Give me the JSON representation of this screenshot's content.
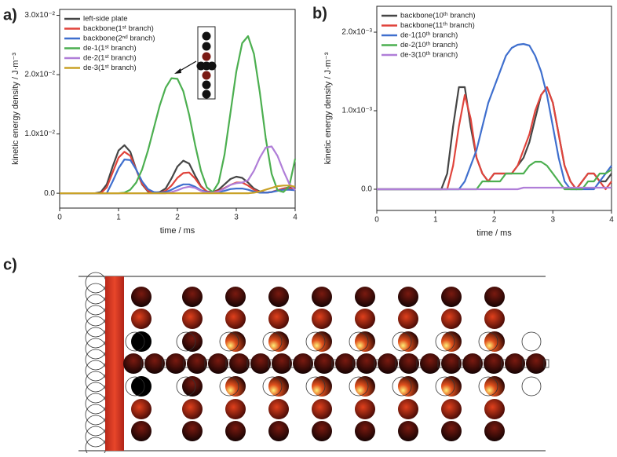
{
  "panel_labels": [
    "a)",
    "b)",
    "c)"
  ],
  "chart_data": [
    {
      "type": "line",
      "xlabel": "time / ms",
      "ylabel": "kinetic energy density / J·m⁻³",
      "x": [
        0,
        0.1,
        0.2,
        0.3,
        0.4,
        0.5,
        0.6,
        0.7,
        0.8,
        0.9,
        1,
        1.1,
        1.2,
        1.3,
        1.4,
        1.5,
        1.6,
        1.7,
        1.8,
        1.9,
        2,
        2.1,
        2.2,
        2.3,
        2.4,
        2.5,
        2.6,
        2.7,
        2.8,
        2.9,
        3,
        3.1,
        3.2,
        3.3,
        3.4,
        3.5,
        3.6,
        3.7,
        3.8,
        3.9,
        4
      ],
      "xlim": [
        0,
        4
      ],
      "xticks": [
        0,
        1,
        2,
        3,
        4
      ],
      "ylim": [
        -0.0025,
        0.031
      ],
      "yticks": [
        {
          "value": 0,
          "label": "0.0"
        },
        {
          "value": 0.01,
          "label": "1.0x10⁻²"
        },
        {
          "value": 0.02,
          "label": "2.0x10⁻²"
        },
        {
          "value": 0.03,
          "label": "3.0x10⁻²"
        }
      ],
      "legend": "upper left",
      "series": [
        {
          "name": "left-side plate",
          "color": "#454545",
          "values": [
            0,
            0,
            0,
            0,
            0,
            0,
            0,
            0.0002,
            0.0015,
            0.0045,
            0.0072,
            0.0081,
            0.007,
            0.004,
            0.0015,
            0.0003,
            0.0001,
            0.0002,
            0.0008,
            0.0025,
            0.0045,
            0.0055,
            0.005,
            0.003,
            0.0012,
            0.0003,
            0.0002,
            0.0006,
            0.0015,
            0.0024,
            0.0028,
            0.0026,
            0.0018,
            0.0008,
            0.0003,
            0.0001,
            0.0002,
            0.0005,
            0.0008,
            0.001,
            0.0008
          ]
        },
        {
          "name": "backbone(1ˢᵗ branch)",
          "color": "#e0443c",
          "values": [
            0,
            0,
            0,
            0,
            0,
            0,
            0,
            0,
            0.001,
            0.0035,
            0.006,
            0.007,
            0.0063,
            0.004,
            0.0016,
            0.0004,
            0.0001,
            0.0001,
            0.0004,
            0.0013,
            0.0026,
            0.0034,
            0.0035,
            0.0025,
            0.0011,
            0.0003,
            0.0002,
            0.0004,
            0.0009,
            0.0014,
            0.0018,
            0.0018,
            0.0013,
            0.0006,
            0.0002,
            0.0001,
            0.0002,
            0.0005,
            0.0008,
            0.0009,
            0.0007
          ]
        },
        {
          "name": "backbone(2ⁿᵈ branch)",
          "color": "#3f6fce",
          "values": [
            0,
            0,
            0,
            0,
            0,
            0,
            0,
            0,
            0,
            0.002,
            0.0042,
            0.0057,
            0.0056,
            0.004,
            0.002,
            0.0007,
            0.0002,
            0.0001,
            0.0002,
            0.0006,
            0.0011,
            0.0015,
            0.0015,
            0.0011,
            0.0005,
            0.0002,
            0.0001,
            0.0002,
            0.0004,
            0.0007,
            0.0008,
            0.0008,
            0.0006,
            0.0003,
            0.0001,
            0.0001,
            0.0002,
            0.0004,
            0.0006,
            0.0006,
            0.0005
          ]
        },
        {
          "name": "de-1(1ˢᵗ branch)",
          "color": "#4caf50",
          "values": [
            0,
            0,
            0,
            0,
            0,
            0,
            0,
            0,
            0,
            0,
            0,
            0.0001,
            0.0006,
            0.0018,
            0.004,
            0.0072,
            0.011,
            0.0148,
            0.0178,
            0.0194,
            0.0193,
            0.0172,
            0.0132,
            0.0082,
            0.0038,
            0.001,
            0.0002,
            0.0018,
            0.0065,
            0.0135,
            0.0205,
            0.0253,
            0.0265,
            0.0235,
            0.017,
            0.0093,
            0.0033,
            0.0005,
            0.0002,
            0.0012,
            0.0058
          ]
        },
        {
          "name": "de-2(1ˢᵗ branch)",
          "color": "#b07ed8",
          "values": [
            0,
            0,
            0,
            0,
            0,
            0,
            0,
            0,
            0,
            0,
            0,
            0,
            0,
            0,
            0,
            0,
            0,
            0,
            0,
            0.0002,
            0.0005,
            0.0009,
            0.0011,
            0.0009,
            0.0004,
            0.0001,
            0.0001,
            0.0003,
            0.0008,
            0.0014,
            0.0017,
            0.0018,
            0.0022,
            0.0038,
            0.006,
            0.0077,
            0.0079,
            0.0063,
            0.0038,
            0.0016,
            0.0005
          ]
        },
        {
          "name": "de-3(1ˢᵗ branch)",
          "color": "#c9a227",
          "values": [
            0,
            0,
            0,
            0,
            0,
            0,
            0,
            0,
            0,
            0,
            0,
            0,
            0,
            0,
            0,
            0,
            0,
            0,
            0,
            0,
            0,
            0,
            0,
            0,
            0,
            0,
            0,
            0,
            0,
            0,
            0,
            0,
            0,
            0.0001,
            0.0003,
            0.0006,
            0.0009,
            0.0012,
            0.0013,
            0.0013,
            0.0011
          ]
        }
      ]
    },
    {
      "type": "line",
      "xlabel": "time / ms",
      "ylabel": "kinetic energy density / J·m⁻³",
      "x": [
        0,
        0.1,
        0.2,
        0.3,
        0.4,
        0.5,
        0.6,
        0.7,
        0.8,
        0.9,
        1,
        1.1,
        1.2,
        1.3,
        1.4,
        1.5,
        1.6,
        1.7,
        1.8,
        1.9,
        2,
        2.1,
        2.2,
        2.3,
        2.4,
        2.5,
        2.6,
        2.7,
        2.8,
        2.9,
        3,
        3.1,
        3.2,
        3.3,
        3.4,
        3.5,
        3.6,
        3.7,
        3.8,
        3.9,
        4
      ],
      "xlim": [
        0,
        4
      ],
      "xticks": [
        0,
        1,
        2,
        3,
        4
      ],
      "ylim": [
        -0.00027,
        0.00233
      ],
      "yticks": [
        {
          "value": 0,
          "label": "0.0"
        },
        {
          "value": 0.001,
          "label": "1.0x10⁻³"
        },
        {
          "value": 0.002,
          "label": "2.0x10⁻³"
        }
      ],
      "legend": "upper left",
      "series": [
        {
          "name": "backbone(10ᵗʰ branch)",
          "color": "#454545",
          "values": [
            0,
            0,
            0,
            0,
            0,
            0,
            0,
            0,
            0,
            0,
            0,
            0,
            0.0002,
            0.0008,
            0.0013,
            0.0013,
            0.0008,
            0.0004,
            0.0002,
            0.0001,
            0.0002,
            0.0002,
            0.0002,
            0.0002,
            0.0003,
            0.0004,
            0.0006,
            0.0009,
            0.0012,
            0.0013,
            0.0011,
            0.0007,
            0.0003,
            0.0001,
            0,
            0.0001,
            0.0002,
            0.0002,
            0.0001,
            0.0001,
            0.0002
          ]
        },
        {
          "name": "backbone(11ᵗʰ branch)",
          "color": "#e0443c",
          "values": [
            0,
            0,
            0,
            0,
            0,
            0,
            0,
            0,
            0,
            0,
            0,
            0,
            0,
            0.0003,
            0.0008,
            0.0012,
            0.0009,
            0.0004,
            0.0002,
            0.0001,
            0.0002,
            0.0002,
            0.0002,
            0.0002,
            0.0003,
            0.0005,
            0.0007,
            0.001,
            0.0012,
            0.0013,
            0.0011,
            0.0007,
            0.0003,
            0.0001,
            0,
            0.0001,
            0.0002,
            0.0002,
            0.0001,
            0,
            0.0001
          ]
        },
        {
          "name": "de-1(10ᵗʰ branch)",
          "color": "#3f6fce",
          "values": [
            0,
            0,
            0,
            0,
            0,
            0,
            0,
            0,
            0,
            0,
            0,
            0,
            0,
            0,
            0,
            0.0001,
            0.0003,
            0.0005,
            0.0008,
            0.0011,
            0.0013,
            0.0015,
            0.0017,
            0.0018,
            0.00184,
            0.00185,
            0.00183,
            0.0017,
            0.0015,
            0.0012,
            0.0008,
            0.0004,
            0.0001,
            0,
            0,
            0,
            0,
            0,
            0.0001,
            0.0002,
            0.0003
          ]
        },
        {
          "name": "de-2(10ᵗʰ branch)",
          "color": "#4caf50",
          "values": [
            0,
            0,
            0,
            0,
            0,
            0,
            0,
            0,
            0,
            0,
            0,
            0,
            0,
            0,
            0,
            0,
            0,
            0,
            0.0001,
            0.0001,
            0.0001,
            0.0001,
            0.0002,
            0.0002,
            0.0002,
            0.0002,
            0.0003,
            0.00035,
            0.00035,
            0.0003,
            0.0002,
            0.0001,
            0,
            0,
            0,
            0,
            0.0001,
            0.0001,
            0.0002,
            0.0002,
            0.00025
          ]
        },
        {
          "name": "de-3(10ᵗʰ branch)",
          "color": "#b07ed8",
          "values": [
            0,
            0,
            0,
            0,
            0,
            0,
            0,
            0,
            0,
            0,
            0,
            0,
            0,
            0,
            0,
            0,
            0,
            0,
            0,
            0,
            0,
            0,
            0,
            0,
            0,
            2e-05,
            2e-05,
            2e-05,
            2e-05,
            2e-05,
            2e-05,
            2e-05,
            2e-05,
            2e-05,
            2e-05,
            2e-05,
            2e-05,
            2e-05,
            2e-05,
            2e-05,
            2e-05
          ]
        }
      ]
    }
  ]
}
